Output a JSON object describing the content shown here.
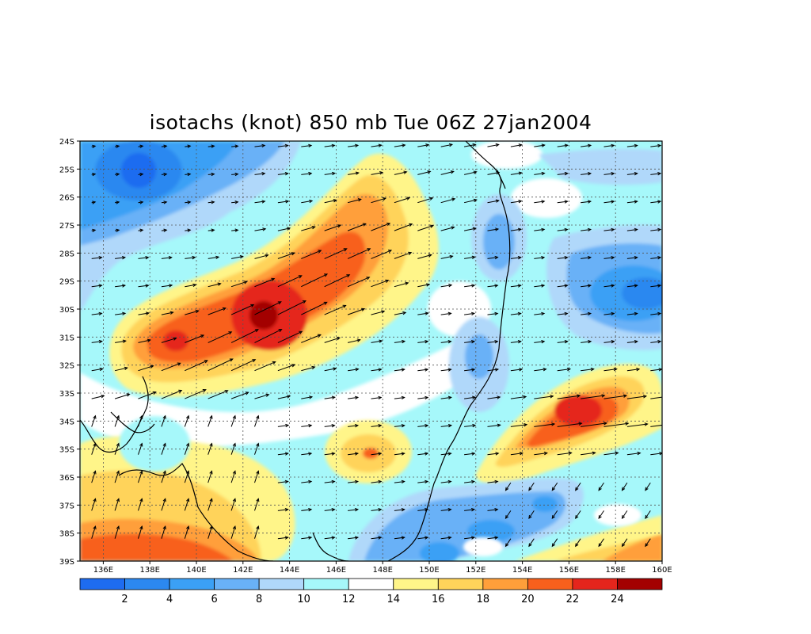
{
  "title": "isotachs (knot) 850 mb Tue 06Z 27jan2004",
  "lat_labels": [
    "24S",
    "25S",
    "26S",
    "27S",
    "28S",
    "29S",
    "30S",
    "31S",
    "32S",
    "33S",
    "34S",
    "35S",
    "36S",
    "37S",
    "38S",
    "39S"
  ],
  "lon_labels": [
    "136E",
    "138E",
    "140E",
    "142E",
    "144E",
    "146E",
    "148E",
    "150E",
    "152E",
    "154E",
    "156E",
    "158E",
    "160E"
  ],
  "colorbar": {
    "levels": [
      2,
      4,
      6,
      8,
      10,
      12,
      14,
      16,
      18,
      20,
      22,
      24
    ],
    "labels": [
      "2",
      "4",
      "6",
      "8",
      "10",
      "12",
      "14",
      "16",
      "18",
      "20",
      "22",
      "24"
    ],
    "colors": [
      "#1e6cf0",
      "#2c88f0",
      "#3ba0f5",
      "#69b1f7",
      "#b0d8fa",
      "#a6f8fa",
      "#ffffff",
      "#fff589",
      "#ffd35a",
      "#ff9f3a",
      "#f8601c",
      "#e5251c",
      "#a30101"
    ]
  },
  "map": {
    "lat_range": [
      -39,
      -24
    ],
    "lon_range": [
      135,
      160
    ]
  }
}
